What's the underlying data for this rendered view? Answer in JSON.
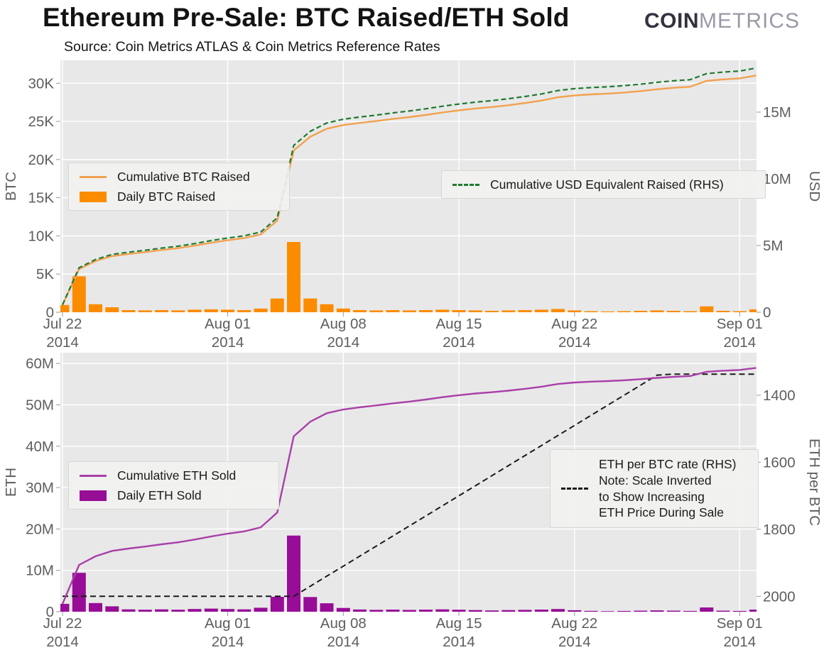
{
  "header": {
    "title": "Ethereum Pre-Sale: BTC Raised/ETH Sold",
    "subtitle": "Source: Coin Metrics ATLAS & Coin Metrics Reference Rates",
    "logo_bold": "COIN",
    "logo_light": "METRICS"
  },
  "colors": {
    "orange_bar": "#FB8C00",
    "orange_line": "#F2A14E",
    "green_dashed": "#1F7A30",
    "purple_bar": "#970D97",
    "purple_line": "#A93FA9",
    "black_dashed": "#1A1A1A",
    "plot_bg": "#E8E8E8",
    "grid": "#FFFFFF",
    "tick_text": "#5E5E5E",
    "tick_mark": "#999999"
  },
  "x_axis": {
    "n_days": 43,
    "start_label": "Jul 22",
    "tick_days": [
      0,
      10,
      17,
      24,
      31,
      41
    ],
    "tick_labels": [
      "Jul 22",
      "Aug 01",
      "Aug 08",
      "Aug 15",
      "Aug 22",
      "Sep 01"
    ],
    "year_label": "2014"
  },
  "chart_data": [
    {
      "type": "bar",
      "panel": "top",
      "ylabel_left": "BTC",
      "ylabel_right": "USD",
      "left_ticks": [
        {
          "v": 0,
          "label": "0"
        },
        {
          "v": 5000,
          "label": "5K"
        },
        {
          "v": 10000,
          "label": "10K"
        },
        {
          "v": 15000,
          "label": "15K"
        },
        {
          "v": 20000,
          "label": "20K"
        },
        {
          "v": 25000,
          "label": "25K"
        },
        {
          "v": 30000,
          "label": "30K"
        }
      ],
      "left_domain_max": 33000,
      "right_ticks": [
        {
          "v": 0,
          "label": "0"
        },
        {
          "v": 5000000,
          "label": "5M"
        },
        {
          "v": 10000000,
          "label": "10M"
        },
        {
          "v": 15000000,
          "label": "15M"
        }
      ],
      "right_domain_max": 18880000,
      "usd_per_btc_assumed": 590,
      "final_cumulative_btc_approx": 31000,
      "final_cumulative_usd_approx": 18300000,
      "series": [
        {
          "name": "Daily BTC Raised",
          "type": "bar",
          "axis": "left",
          "values": [
            950,
            4700,
            1050,
            650,
            280,
            240,
            280,
            240,
            330,
            380,
            330,
            280,
            480,
            1800,
            9200,
            1800,
            1050,
            480,
            280,
            240,
            280,
            240,
            280,
            330,
            280,
            240,
            190,
            240,
            280,
            330,
            430,
            240,
            140,
            100,
            140,
            190,
            240,
            190,
            140,
            770,
            190,
            140,
            380
          ]
        },
        {
          "name": "Cumulative BTC Raised",
          "type": "line",
          "axis": "left",
          "derived": "cumsum(Daily BTC Raised)"
        },
        {
          "name": "Cumulative USD Equivalent Raised (RHS)",
          "type": "dashed_line",
          "axis": "right",
          "derived": "cumsum(Daily BTC Raised) * usd_per_btc_assumed"
        }
      ]
    },
    {
      "type": "bar",
      "panel": "bottom",
      "ylabel_left": "ETH",
      "ylabel_right": "ETH per BTC",
      "left_ticks": [
        {
          "v": 0,
          "label": "0"
        },
        {
          "v": 10000000,
          "label": "10M"
        },
        {
          "v": 20000000,
          "label": "20M"
        },
        {
          "v": 30000000,
          "label": "30M"
        },
        {
          "v": 40000000,
          "label": "40M"
        },
        {
          "v": 50000000,
          "label": "50M"
        },
        {
          "v": 60000000,
          "label": "60M"
        }
      ],
      "left_domain_max": 62600000,
      "right_ticks": [
        {
          "v": 1400,
          "label": "1400"
        },
        {
          "v": 1600,
          "label": "1600"
        },
        {
          "v": 1800,
          "label": "1800"
        },
        {
          "v": 2000,
          "label": "2000"
        }
      ],
      "right_domain": {
        "top": 1273,
        "bottom": 2046
      },
      "right_axis_inverted": true,
      "final_cumulative_eth_approx": 59000000,
      "series": [
        {
          "name": "Daily ETH Sold",
          "type": "bar",
          "axis": "left",
          "derived": "Daily BTC Raised * ETH per BTC rate"
        },
        {
          "name": "Cumulative ETH Sold",
          "type": "line",
          "axis": "left",
          "derived": "cumsum(Daily ETH Sold)"
        },
        {
          "name": "ETH per BTC rate (RHS)",
          "type": "dashed_line",
          "axis": "right",
          "values": [
            2000,
            2000,
            2000,
            2000,
            2000,
            2000,
            2000,
            2000,
            2000,
            2000,
            2000,
            2000,
            2000,
            2000,
            2000,
            1970,
            1940,
            1910,
            1880,
            1850,
            1820,
            1790,
            1760,
            1730,
            1700,
            1670,
            1640,
            1610,
            1580,
            1550,
            1520,
            1490,
            1460,
            1430,
            1400,
            1370,
            1340,
            1337,
            1337,
            1337,
            1337,
            1337,
            1337
          ]
        }
      ],
      "rhs_legend_lines": [
        "ETH per BTC rate (RHS)",
        "Note: Scale Inverted",
        "to Show Increasing",
        "ETH Price During Sale"
      ]
    }
  ]
}
